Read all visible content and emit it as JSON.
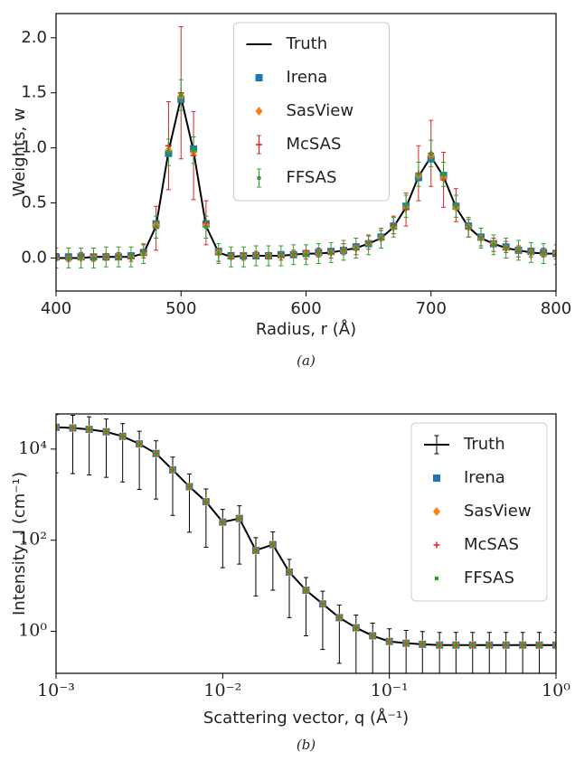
{
  "chart_data": [
    {
      "type": "line",
      "xlabel": "Radius, r (Å)",
      "ylabel": "Weights, w",
      "caption": "(a)",
      "xlim": [
        400,
        800
      ],
      "ylim": [
        -0.3,
        2.22
      ],
      "xticks": [
        400,
        500,
        600,
        700,
        800
      ],
      "yticks": [
        {
          "value": 0,
          "label": "0.0"
        },
        {
          "value": 0.5,
          "label": "0.5"
        },
        {
          "value": 1,
          "label": "1.0"
        },
        {
          "value": 1.5,
          "label": "1.5"
        },
        {
          "value": 2,
          "label": "2.0"
        }
      ],
      "legend": "upper center",
      "x": [
        400,
        410,
        420,
        430,
        440,
        450,
        460,
        470,
        480,
        490,
        500,
        510,
        520,
        530,
        540,
        550,
        560,
        570,
        580,
        590,
        600,
        610,
        620,
        630,
        640,
        650,
        660,
        670,
        680,
        690,
        700,
        710,
        720,
        730,
        740,
        750,
        760,
        770,
        780,
        790,
        800
      ],
      "series": [
        {
          "name": "Truth",
          "color": "#000000",
          "marker": "line",
          "values": [
            0.0,
            0.0,
            0.0,
            0.01,
            0.01,
            0.01,
            0.01,
            0.04,
            0.29,
            0.97,
            1.46,
            0.97,
            0.29,
            0.05,
            0.01,
            0.02,
            0.02,
            0.02,
            0.02,
            0.03,
            0.04,
            0.04,
            0.05,
            0.07,
            0.09,
            0.13,
            0.18,
            0.28,
            0.46,
            0.74,
            0.92,
            0.74,
            0.46,
            0.28,
            0.18,
            0.13,
            0.09,
            0.07,
            0.05,
            0.04,
            0.04
          ]
        },
        {
          "name": "Irena",
          "color": "#1f77b4",
          "marker": "square",
          "values": [
            0.01,
            0.01,
            0.01,
            0.01,
            0.01,
            0.01,
            0.02,
            0.05,
            0.31,
            0.95,
            1.44,
            0.99,
            0.31,
            0.06,
            0.02,
            0.02,
            0.02,
            0.02,
            0.03,
            0.03,
            0.04,
            0.05,
            0.06,
            0.07,
            0.1,
            0.13,
            0.19,
            0.29,
            0.47,
            0.73,
            0.9,
            0.75,
            0.47,
            0.29,
            0.19,
            0.13,
            0.1,
            0.07,
            0.06,
            0.05,
            0.04
          ]
        },
        {
          "name": "SasView",
          "color": "#ff7f0e",
          "marker": "diamond",
          "values": [
            0.0,
            0.0,
            0.0,
            0.01,
            0.01,
            0.01,
            0.01,
            0.04,
            0.3,
            0.98,
            1.47,
            0.96,
            0.3,
            0.05,
            0.01,
            0.02,
            0.02,
            0.02,
            0.02,
            0.03,
            0.04,
            0.04,
            0.05,
            0.07,
            0.09,
            0.13,
            0.18,
            0.28,
            0.46,
            0.75,
            0.93,
            0.73,
            0.46,
            0.28,
            0.18,
            0.13,
            0.09,
            0.07,
            0.05,
            0.04,
            0.04
          ]
        },
        {
          "name": "McSAS",
          "color": "#d62728",
          "marker": "plus",
          "values": [
            0.01,
            0.0,
            0.02,
            0.0,
            0.01,
            0.02,
            0.0,
            0.06,
            0.27,
            1.02,
            1.5,
            0.93,
            0.32,
            0.03,
            0.02,
            0.01,
            0.03,
            0.02,
            0.01,
            0.04,
            0.03,
            0.05,
            0.04,
            0.08,
            0.08,
            0.14,
            0.17,
            0.3,
            0.44,
            0.77,
            0.95,
            0.71,
            0.48,
            0.27,
            0.19,
            0.12,
            0.1,
            0.06,
            0.05,
            0.05,
            0.03
          ],
          "errors": [
            0.03,
            0.03,
            0.03,
            0.03,
            0.03,
            0.03,
            0.03,
            0.06,
            0.2,
            0.4,
            0.6,
            0.4,
            0.2,
            0.06,
            0.03,
            0.03,
            0.03,
            0.03,
            0.03,
            0.03,
            0.04,
            0.04,
            0.04,
            0.05,
            0.05,
            0.06,
            0.08,
            0.08,
            0.15,
            0.25,
            0.3,
            0.25,
            0.15,
            0.08,
            0.08,
            0.06,
            0.05,
            0.05,
            0.04,
            0.04,
            0.04
          ]
        },
        {
          "name": "FFSAS",
          "color": "#2ca02c",
          "marker": "dot",
          "values": [
            0.0,
            0.0,
            0.0,
            0.0,
            0.01,
            0.01,
            0.01,
            0.04,
            0.28,
            0.96,
            1.48,
            0.98,
            0.28,
            0.04,
            0.01,
            0.01,
            0.02,
            0.02,
            0.02,
            0.03,
            0.03,
            0.04,
            0.05,
            0.07,
            0.09,
            0.12,
            0.18,
            0.28,
            0.47,
            0.76,
            0.95,
            0.76,
            0.47,
            0.28,
            0.18,
            0.12,
            0.09,
            0.07,
            0.05,
            0.04,
            0.03
          ],
          "errors": [
            0.09,
            0.09,
            0.09,
            0.09,
            0.09,
            0.09,
            0.09,
            0.09,
            0.1,
            0.12,
            0.14,
            0.12,
            0.1,
            0.09,
            0.09,
            0.09,
            0.09,
            0.09,
            0.09,
            0.09,
            0.09,
            0.09,
            0.09,
            0.09,
            0.09,
            0.09,
            0.09,
            0.09,
            0.1,
            0.11,
            0.12,
            0.11,
            0.1,
            0.09,
            0.09,
            0.09,
            0.09,
            0.09,
            0.09,
            0.09,
            0.09
          ]
        }
      ]
    },
    {
      "type": "line",
      "xlabel": "Scattering vector, q (Å⁻¹)",
      "ylabel": "Intensity, I (cm⁻¹)",
      "caption": "(b)",
      "log_x": true,
      "log_y": true,
      "xlim": [
        0.001,
        1
      ],
      "ylim": [
        0.12,
        59000
      ],
      "xticks": [
        {
          "value": 0.001,
          "label": "10⁻³"
        },
        {
          "value": 0.01,
          "label": "10⁻²"
        },
        {
          "value": 0.1,
          "label": "10⁻¹"
        },
        {
          "value": 1,
          "label": "10⁰"
        }
      ],
      "yticks": [
        {
          "value": 1,
          "label": "10⁰"
        },
        {
          "value": 100,
          "label": "10²"
        },
        {
          "value": 10000,
          "label": "10⁴"
        }
      ],
      "legend": "upper right",
      "x": [
        0.001,
        0.00126,
        0.00158,
        0.002,
        0.00251,
        0.00316,
        0.00398,
        0.00501,
        0.00631,
        0.00794,
        0.01,
        0.0126,
        0.0158,
        0.02,
        0.0251,
        0.0316,
        0.0398,
        0.0501,
        0.0631,
        0.0794,
        0.1,
        0.126,
        0.158,
        0.2,
        0.251,
        0.316,
        0.398,
        0.501,
        0.631,
        0.794,
        1
      ],
      "series": [
        {
          "name": "Truth",
          "color": "#000000",
          "marker": "line",
          "values": [
            30000,
            29000,
            27000,
            24000,
            19000,
            13000,
            8000,
            3500,
            1500,
            700,
            250,
            300,
            60,
            80,
            20,
            8,
            4,
            2,
            1.2,
            0.8,
            0.6,
            0.55,
            0.52,
            0.5,
            0.5,
            0.5,
            0.5,
            0.5,
            0.5,
            0.5,
            0.5
          ],
          "errors": [
            27000,
            26100,
            24300,
            21600,
            17100,
            11700,
            7200,
            3150,
            1350,
            630,
            225,
            270,
            54,
            72,
            18,
            7.2,
            3.6,
            1.8,
            1.08,
            0.72,
            0.54,
            0.5,
            0.47,
            0.45,
            0.45,
            0.45,
            0.45,
            0.45,
            0.45,
            0.45,
            0.45
          ]
        },
        {
          "name": "Irena",
          "color": "#1f77b4",
          "marker": "square",
          "values": [
            30000,
            29000,
            27000,
            24000,
            19000,
            13000,
            8000,
            3500,
            1500,
            700,
            250,
            300,
            60,
            80,
            20,
            8,
            4,
            2,
            1.2,
            0.8,
            0.6,
            0.55,
            0.52,
            0.5,
            0.5,
            0.5,
            0.5,
            0.5,
            0.5,
            0.5,
            0.5
          ]
        },
        {
          "name": "SasView",
          "color": "#ff7f0e",
          "marker": "diamond",
          "values": [
            30000,
            29000,
            27000,
            24000,
            19000,
            13000,
            8000,
            3500,
            1500,
            700,
            250,
            300,
            60,
            80,
            20,
            8,
            4,
            2,
            1.2,
            0.8,
            0.6,
            0.55,
            0.52,
            0.5,
            0.5,
            0.5,
            0.5,
            0.5,
            0.5,
            0.5,
            0.5
          ]
        },
        {
          "name": "McSAS",
          "color": "#d62728",
          "marker": "plus",
          "values": [
            30000,
            29000,
            27000,
            24000,
            19000,
            13000,
            8000,
            3500,
            1500,
            700,
            250,
            300,
            60,
            80,
            20,
            8,
            4,
            2,
            1.2,
            0.8,
            0.6,
            0.55,
            0.52,
            0.5,
            0.5,
            0.5,
            0.5,
            0.5,
            0.5,
            0.5,
            0.5
          ]
        },
        {
          "name": "FFSAS",
          "color": "#2ca02c",
          "marker": "dot",
          "values": [
            30000,
            29000,
            27000,
            24000,
            19000,
            13000,
            8000,
            3500,
            1500,
            700,
            250,
            300,
            60,
            80,
            20,
            8,
            4,
            2,
            1.2,
            0.8,
            0.6,
            0.55,
            0.52,
            0.5,
            0.5,
            0.5,
            0.5,
            0.5,
            0.5,
            0.5,
            0.5
          ]
        }
      ]
    }
  ]
}
